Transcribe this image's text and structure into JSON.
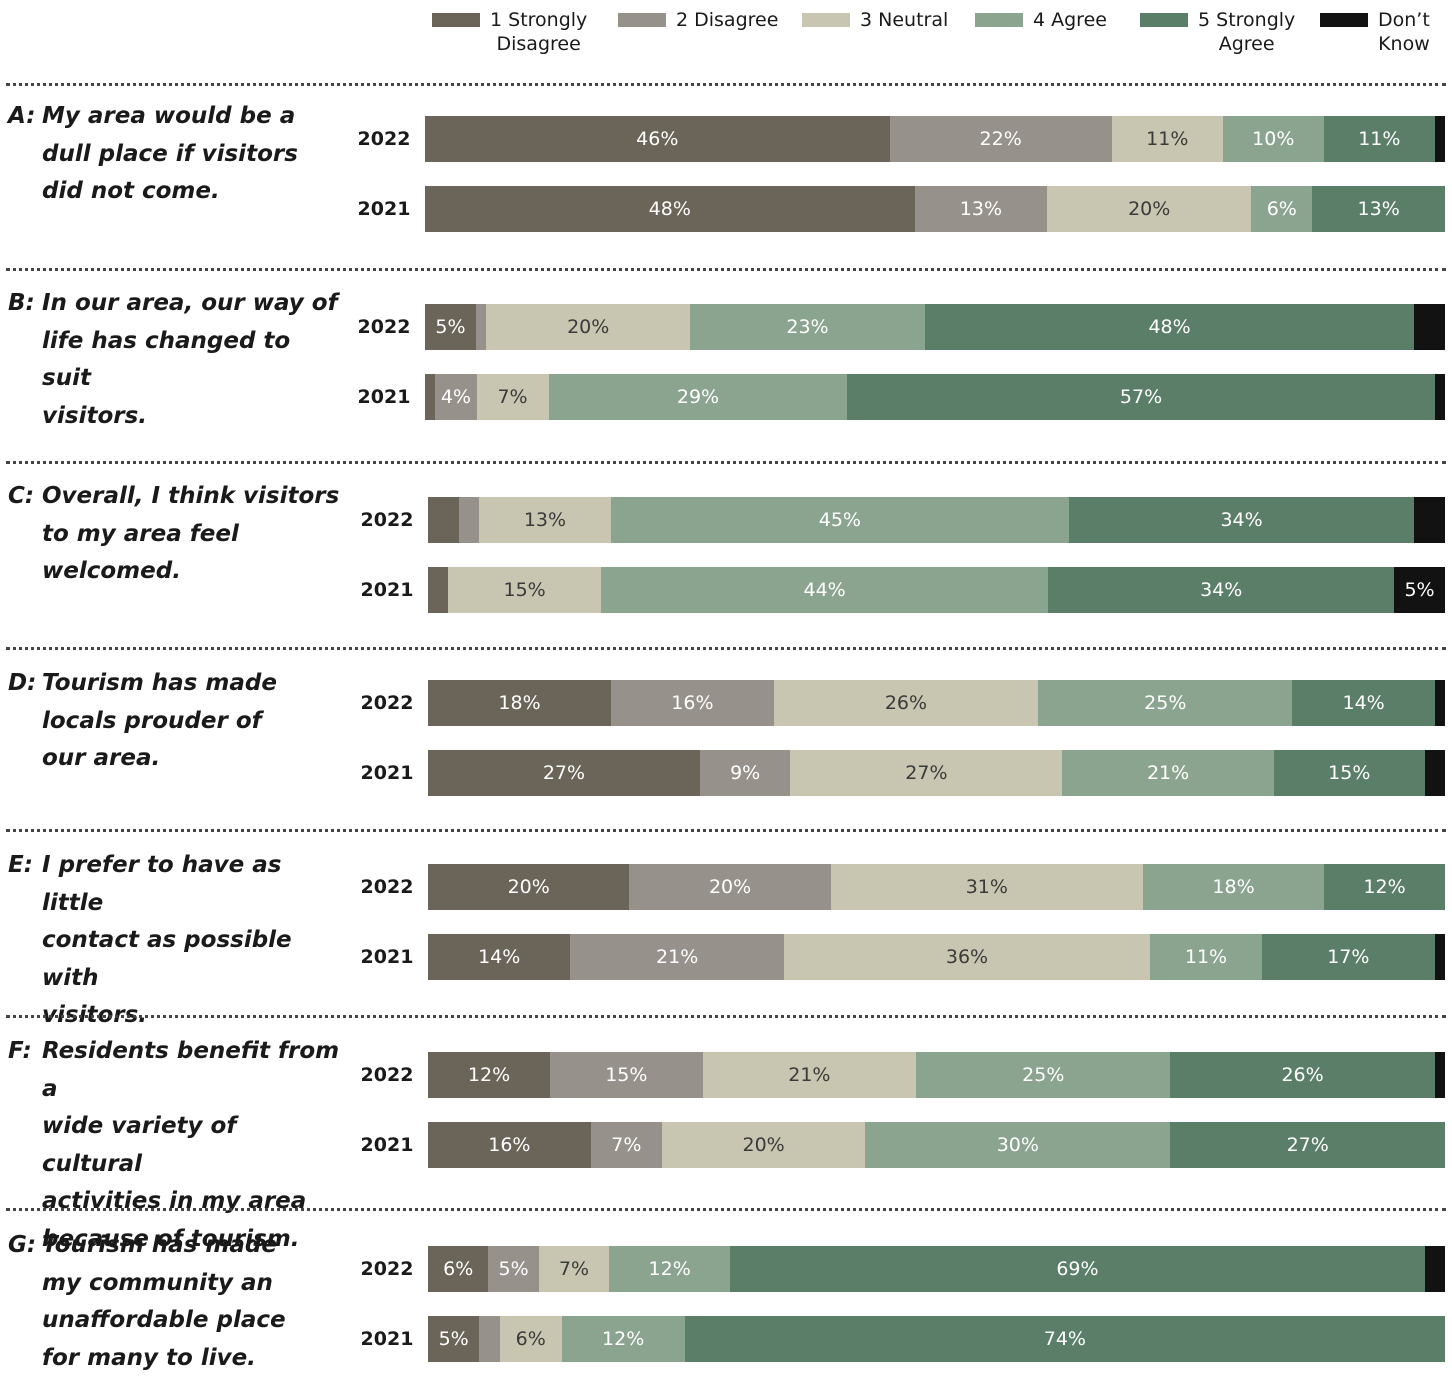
{
  "chart_data": {
    "type": "bar",
    "orientation": "horizontal",
    "stacked": true,
    "legend_position": "top",
    "categories_note": "",
    "series_names": [
      "1 Strongly Disagree",
      "2 Disagree",
      "3 Neutral",
      "4 Agree",
      "5 Strongly Agree",
      "Don’t Know"
    ],
    "legend": [
      {
        "label": "1 Strongly\nDisagree",
        "color": "#6b6458",
        "kind": "sd"
      },
      {
        "label": "2 Disagree",
        "color": "#96918b",
        "kind": "d"
      },
      {
        "label": "3 Neutral",
        "color": "#c8c6b0",
        "kind": "neutral"
      },
      {
        "label": "4 Agree",
        "color": "#8ba48f",
        "kind": "a"
      },
      {
        "label": "5 Strongly\nAgree",
        "color": "#5b7e69",
        "kind": "sa"
      },
      {
        "label": "Don’t\nKnow",
        "color": "#121212",
        "kind": "dk"
      }
    ],
    "questions": [
      {
        "letter": "A:",
        "text": "My area would be a dull place if visitors did not come.",
        "rows": [
          {
            "year": "2022",
            "values": [
              46,
              22,
              11,
              10,
              11,
              1
            ],
            "labels": [
              "46%",
              "22%",
              "11%",
              "10%",
              "11%",
              ""
            ]
          },
          {
            "year": "2021",
            "values": [
              48,
              13,
              20,
              6,
              13,
              0
            ],
            "labels": [
              "48%",
              "13%",
              "20%",
              "6%",
              "13%",
              ""
            ]
          }
        ]
      },
      {
        "letter": "B:",
        "text": "In our area, our way of life has changed to suit visitors.",
        "rows": [
          {
            "year": "2022",
            "values": [
              5,
              1,
              20,
              23,
              48,
              3
            ],
            "labels": [
              "5%",
              "",
              "20%",
              "23%",
              "48%",
              ""
            ]
          },
          {
            "year": "2021",
            "values": [
              1,
              4,
              7,
              29,
              57,
              1
            ],
            "labels": [
              "",
              "4%",
              "7%",
              "29%",
              "57%",
              ""
            ]
          }
        ]
      },
      {
        "letter": "C:",
        "text": "Overall, I think visitors to my area feel welcomed.",
        "rows": [
          {
            "year": "2022",
            "values": [
              3,
              2,
              13,
              45,
              34,
              3
            ],
            "labels": [
              "",
              "",
              "13%",
              "45%",
              "34%",
              ""
            ]
          },
          {
            "year": "2021",
            "values": [
              2,
              0,
              15,
              44,
              34,
              5
            ],
            "labels": [
              "",
              "",
              "15%",
              "44%",
              "34%",
              "5%"
            ]
          }
        ]
      },
      {
        "letter": "D:",
        "text": "Tourism has made locals prouder of our area.",
        "rows": [
          {
            "year": "2022",
            "values": [
              18,
              16,
              26,
              25,
              14,
              1
            ],
            "labels": [
              "18%",
              "16%",
              "26%",
              "25%",
              "14%",
              ""
            ]
          },
          {
            "year": "2021",
            "values": [
              27,
              9,
              27,
              21,
              15,
              2
            ],
            "labels": [
              "27%",
              "9%",
              "27%",
              "21%",
              "15%",
              ""
            ]
          }
        ]
      },
      {
        "letter": "E:",
        "text": "I prefer to have as little contact as possible with visitors.",
        "rows": [
          {
            "year": "2022",
            "values": [
              20,
              20,
              31,
              18,
              12,
              0
            ],
            "labels": [
              "20%",
              "20%",
              "31%",
              "18%",
              "12%",
              ""
            ]
          },
          {
            "year": "2021",
            "values": [
              14,
              21,
              36,
              11,
              17,
              1
            ],
            "labels": [
              "14%",
              "21%",
              "36%",
              "11%",
              "17%",
              ""
            ]
          }
        ]
      },
      {
        "letter": "F:",
        "text": "Residents benefit from a wide variety of cultural activities in my area because of tourism.",
        "rows": [
          {
            "year": "2022",
            "values": [
              12,
              15,
              21,
              25,
              26,
              1
            ],
            "labels": [
              "12%",
              "15%",
              "21%",
              "25%",
              "26%",
              ""
            ]
          },
          {
            "year": "2021",
            "values": [
              16,
              7,
              20,
              30,
              27,
              0
            ],
            "labels": [
              "16%",
              "7%",
              "20%",
              "30%",
              "27%",
              ""
            ]
          }
        ]
      },
      {
        "letter": "G:",
        "text": "Tourism has made my community an unaffordable place for many to live.",
        "rows": [
          {
            "year": "2022",
            "values": [
              6,
              5,
              7,
              12,
              69,
              2
            ],
            "labels": [
              "6%",
              "5%",
              "7%",
              "12%",
              "69%",
              ""
            ]
          },
          {
            "year": "2021",
            "values": [
              5,
              2,
              6,
              12,
              74,
              0
            ],
            "labels": [
              "5%",
              "",
              "6%",
              "12%",
              "74%",
              ""
            ]
          }
        ]
      }
    ]
  }
}
